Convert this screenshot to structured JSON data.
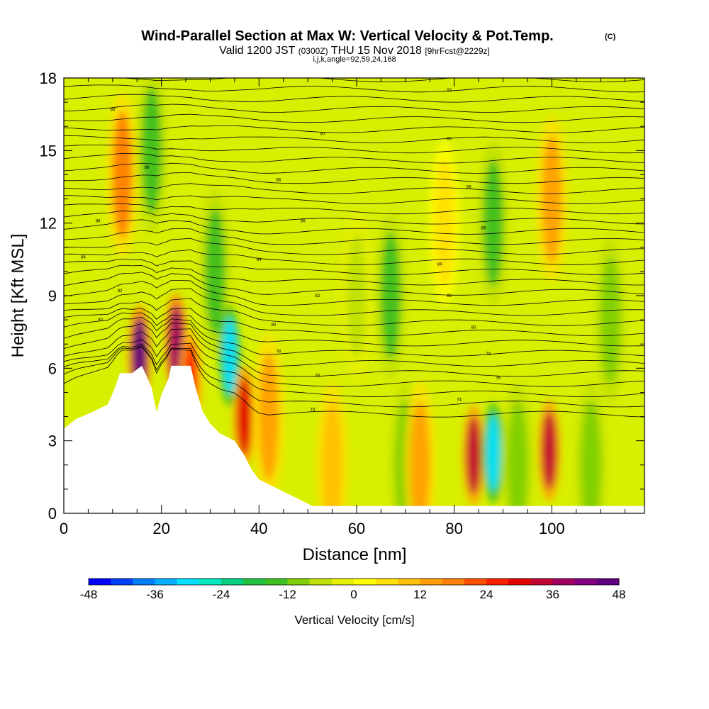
{
  "chart_data": {
    "type": "heatmap",
    "title": "Wind-Parallel Section at Max W: Vertical Velocity & Pot.Temp.",
    "title_mark": "(C)",
    "subtitle_parts": [
      "Valid 1200 JST",
      "(0300Z)",
      "THU 15 Nov 2018",
      "[9hrFcst@2229z]"
    ],
    "subtitle2": "i,j,k,angle=92,59,24,168",
    "xlabel": "Distance [nm]",
    "ylabel": "Height [Kft MSL]",
    "xlim": [
      0,
      119
    ],
    "ylim": [
      0,
      18
    ],
    "x_ticks": [
      0,
      20,
      40,
      60,
      80,
      100
    ],
    "y_ticks": [
      0,
      3,
      6,
      9,
      12,
      15,
      18
    ],
    "colorbar": {
      "label": "Vertical Velocity [cm/s]",
      "ticks": [
        -48,
        -36,
        -24,
        -12,
        0,
        12,
        24,
        36,
        48
      ],
      "range": [
        -48,
        48
      ],
      "colors": [
        "#0000ff",
        "#0040ff",
        "#0080ff",
        "#00b0ff",
        "#00e0ff",
        "#00e8c0",
        "#00d080",
        "#20c040",
        "#40c020",
        "#80d000",
        "#c0e000",
        "#e8f000",
        "#ffff00",
        "#ffe000",
        "#ffc000",
        "#ffa000",
        "#ff8000",
        "#ff5000",
        "#ff2000",
        "#e00000",
        "#c00030",
        "#a00060",
        "#800080",
        "#600080"
      ]
    },
    "velocity_features": [
      {
        "x": 12,
        "z": 14,
        "w": 16
      },
      {
        "x": 15.5,
        "z": 6.5,
        "w": 44
      },
      {
        "x": 18,
        "z": 15,
        "w": -14
      },
      {
        "x": 23,
        "z": 7,
        "w": 36
      },
      {
        "x": 26,
        "z": 5.5,
        "w": 24
      },
      {
        "x": 31,
        "z": 10,
        "w": -14
      },
      {
        "x": 34,
        "z": 6.5,
        "w": -30
      },
      {
        "x": 37,
        "z": 4,
        "w": 28
      },
      {
        "x": 42,
        "z": 4,
        "w": 14
      },
      {
        "x": 55,
        "z": 2,
        "w": 10
      },
      {
        "x": 60,
        "z": 9,
        "w": -6
      },
      {
        "x": 67,
        "z": 9,
        "w": -16
      },
      {
        "x": 70,
        "z": 2,
        "w": -12
      },
      {
        "x": 73,
        "z": 2,
        "w": 14
      },
      {
        "x": 78,
        "z": 12,
        "w": 6
      },
      {
        "x": 84,
        "z": 2.4,
        "w": 34
      },
      {
        "x": 88,
        "z": 2.5,
        "w": -30
      },
      {
        "x": 88,
        "z": 12,
        "w": -14
      },
      {
        "x": 93,
        "z": 2,
        "w": -12
      },
      {
        "x": 99.5,
        "z": 2.6,
        "w": 34
      },
      {
        "x": 100,
        "z": 13,
        "w": 14
      },
      {
        "x": 108,
        "z": 2,
        "w": -12
      },
      {
        "x": 112,
        "z": 8,
        "w": -10
      }
    ],
    "terrain": [
      {
        "x": 0,
        "z": 3.5
      },
      {
        "x": 2.5,
        "z": 3.9
      },
      {
        "x": 6,
        "z": 4.2
      },
      {
        "x": 9,
        "z": 4.5
      },
      {
        "x": 10.5,
        "z": 5.2
      },
      {
        "x": 11.5,
        "z": 5.8
      },
      {
        "x": 14,
        "z": 5.8
      },
      {
        "x": 16,
        "z": 6.1
      },
      {
        "x": 18,
        "z": 5.2
      },
      {
        "x": 19,
        "z": 4.2
      },
      {
        "x": 20,
        "z": 4.9
      },
      {
        "x": 21.5,
        "z": 5.6
      },
      {
        "x": 22,
        "z": 6.1
      },
      {
        "x": 26,
        "z": 6.1
      },
      {
        "x": 27,
        "z": 5.2
      },
      {
        "x": 28.5,
        "z": 4.2
      },
      {
        "x": 30,
        "z": 3.7
      },
      {
        "x": 32,
        "z": 3.3
      },
      {
        "x": 35,
        "z": 3.0
      },
      {
        "x": 37,
        "z": 2.4
      },
      {
        "x": 38.5,
        "z": 1.8
      },
      {
        "x": 40,
        "z": 1.4
      },
      {
        "x": 43,
        "z": 1.1
      },
      {
        "x": 46,
        "z": 0.8
      },
      {
        "x": 49,
        "z": 0.5
      },
      {
        "x": 51,
        "z": 0.3
      },
      {
        "x": 119,
        "z": 0.3
      }
    ],
    "isentrope_labels": [
      {
        "text": "90",
        "x": 10,
        "z": 16.7
      },
      {
        "text": "90",
        "x": 53,
        "z": 15.7
      },
      {
        "text": "90",
        "x": 79,
        "z": 15.5
      },
      {
        "text": "92",
        "x": 79,
        "z": 17.5
      },
      {
        "text": "88",
        "x": 17,
        "z": 14.3
      },
      {
        "text": "88",
        "x": 44,
        "z": 13.8
      },
      {
        "text": "88",
        "x": 83,
        "z": 13.5
      },
      {
        "text": "86",
        "x": 7,
        "z": 12.1
      },
      {
        "text": "86",
        "x": 49,
        "z": 12.1
      },
      {
        "text": "86",
        "x": 86,
        "z": 11.8
      },
      {
        "text": "84",
        "x": 4,
        "z": 10.6
      },
      {
        "text": "84",
        "x": 40,
        "z": 10.5
      },
      {
        "text": "84",
        "x": 77,
        "z": 10.3
      },
      {
        "text": "82",
        "x": 11.5,
        "z": 9.2
      },
      {
        "text": "82",
        "x": 52,
        "z": 9.0
      },
      {
        "text": "82",
        "x": 79,
        "z": 9.0
      },
      {
        "text": "80",
        "x": 7.5,
        "z": 8.0
      },
      {
        "text": "80",
        "x": 43,
        "z": 7.8
      },
      {
        "text": "80",
        "x": 84,
        "z": 7.7
      },
      {
        "text": "78",
        "x": 44,
        "z": 6.7
      },
      {
        "text": "78",
        "x": 87,
        "z": 6.6
      },
      {
        "text": "76",
        "x": 52,
        "z": 5.7
      },
      {
        "text": "76",
        "x": 89,
        "z": 5.6
      },
      {
        "text": "74",
        "x": 51,
        "z": 4.3
      },
      {
        "text": "74",
        "x": 81,
        "z": 4.7
      }
    ]
  }
}
